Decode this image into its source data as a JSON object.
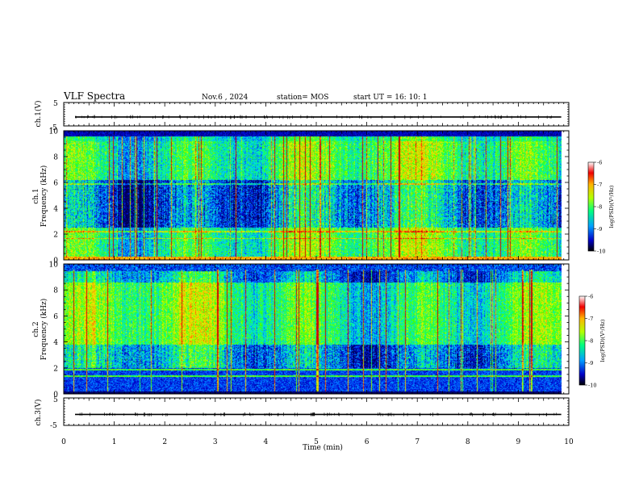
{
  "header": {
    "title": "VLF Spectra",
    "date": "Nov.6  , 2024",
    "station": "station= MOS",
    "start_ut": "start  UT  =   16: 10: 1"
  },
  "chart_data": {
    "type": "heatmap",
    "x_axis": {
      "label": "Time  (min)",
      "range": [
        0,
        10
      ],
      "ticks": [
        "0",
        "1",
        "2",
        "3",
        "4",
        "5",
        "6",
        "7",
        "8",
        "9",
        "10"
      ]
    },
    "panels": [
      {
        "id": "ch1-voltage",
        "ylabel": "ch.1(V)",
        "ylim": [
          -5,
          5
        ],
        "ticks": [
          "5",
          "-5"
        ],
        "trace_level": -1.2
      },
      {
        "id": "ch1-spectrogram",
        "ylabel": "ch.1",
        "ylabel2": "Frequency (kHz)",
        "ylim": [
          0,
          10
        ],
        "ticks": [
          "0",
          "2",
          "4",
          "6",
          "8",
          "10"
        ],
        "colorbar": {
          "label": "log(PSD)(V²/Hz)",
          "range": [
            -10,
            -6
          ],
          "ticks": [
            "-6",
            "-7",
            "-8",
            "-9",
            "-10"
          ]
        }
      },
      {
        "id": "ch2-spectrogram",
        "ylabel": "ch.2",
        "ylabel2": "Frequency (kHz)",
        "ylim": [
          0,
          10
        ],
        "ticks": [
          "0",
          "2",
          "4",
          "6",
          "8",
          "10"
        ],
        "colorbar": {
          "label": "log(PSD)(V²/Hz)",
          "range": [
            -10,
            -6
          ],
          "ticks": [
            "-6",
            "-7",
            "-8",
            "-9",
            "-10"
          ]
        }
      },
      {
        "id": "ch3-voltage",
        "ylabel": "ch.3(V)",
        "ylim": [
          -5,
          5
        ],
        "ticks": [
          "5",
          "-5"
        ],
        "trace_level": -1.0
      }
    ],
    "data_end_min": 9.85
  },
  "colors": {
    "colormap": [
      "#000050",
      "#0000c8",
      "#0050ff",
      "#00c8ff",
      "#00ff9c",
      "#3cff00",
      "#d2ff00",
      "#ffc800",
      "#ff5000",
      "#d20000"
    ]
  }
}
